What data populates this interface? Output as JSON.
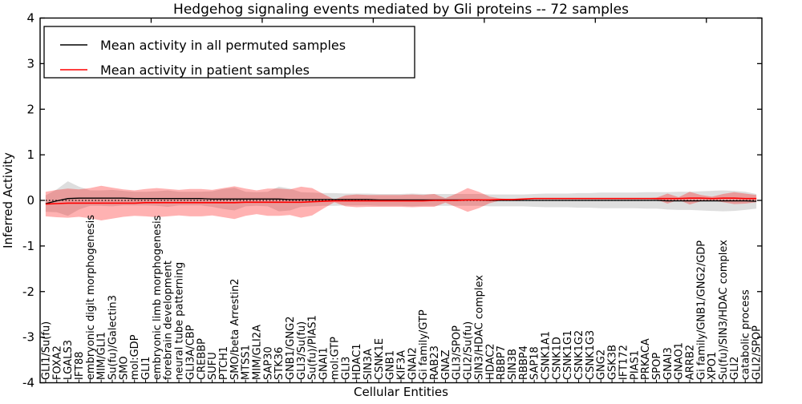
{
  "chart_data": {
    "type": "line",
    "title": "Hedgehog signaling events mediated by Gli proteins -- 72 samples",
    "xlabel": "Cellular Entities",
    "ylabel": "Inferred Activity",
    "ylim": [
      -4,
      4
    ],
    "yticks": [
      -4,
      -3,
      -2,
      -1,
      0,
      1,
      2,
      3,
      4
    ],
    "xticks_major_index": [
      10,
      20,
      30,
      40,
      50,
      60
    ],
    "grid": false,
    "legend": {
      "position": "upper left",
      "frame": true
    },
    "background_color": "#ffffff",
    "axis_color": "#000000",
    "categories": [
      "GLI1/Su(fu)",
      "FOXA2",
      "LGALS3",
      "IFT88",
      "embryonic digit morphogenesis",
      "MIM/GLI1",
      "Su(fu)/Galectin3",
      "SMO",
      "mol:GDP",
      "GLI1",
      "embryonic limb morphogenesis",
      "forebrain development",
      "neural tube patterning",
      "GLI3A/CBP",
      "CREBBP",
      "SUFU",
      "PTCH1",
      "SMO/beta Arrestin2",
      "MTSS1",
      "MIM/GLI2A",
      "SAP30",
      "STK36",
      "GNB1/GNG2",
      "GLI3/Su(fu)",
      "Su(fu)/PIAS1",
      "GNAI1",
      "mol:GTP",
      "GLI3",
      "HDAC1",
      "SIN3A",
      "CSNK1E",
      "GNB1",
      "KIF3A",
      "GNAI2",
      "Gi family/GTP",
      "RAB23",
      "GNAZ",
      "GLI3/SPOP",
      "GLI2/Su(fu)",
      "SIN3/HDAC complex",
      "HDAC2",
      "RBBP7",
      "SIN3B",
      "RBBP4",
      "SAP18",
      "CSNK1A1",
      "CSNK1D",
      "CSNK1G1",
      "CSNK1G2",
      "CSNK1G3",
      "GNG2",
      "GSK3B",
      "IFT172",
      "PIAS1",
      "PRKACA",
      "SPOP",
      "GNAI3",
      "GNAO1",
      "ARRB2",
      "Gi family/GNB1/GNG2/GDP",
      "XPO1",
      "Su(fu)/SIN3/HDAC complex",
      "GLI2",
      "catabolic process",
      "GLI2/SPOP"
    ],
    "series": [
      {
        "name": "Mean activity in all permuted samples",
        "color": "#000000",
        "line_style": "solid",
        "band_color": "#999999",
        "band_opacity": 0.32,
        "values": [
          -0.07,
          -0.01,
          0.04,
          0.05,
          0.05,
          0.05,
          0.05,
          0.05,
          0.04,
          0.04,
          0.04,
          0.04,
          0.04,
          0.04,
          0.04,
          0.03,
          0.03,
          0.03,
          0.03,
          0.03,
          0.03,
          0.03,
          0.02,
          0.02,
          0.02,
          0.02,
          0.02,
          0.02,
          0.02,
          0.02,
          0.01,
          0.01,
          0.01,
          0.01,
          0.01,
          0.01,
          0.01,
          0.01,
          0.01,
          0.01,
          0.0,
          0.0,
          0.0,
          0.0,
          0.0,
          0.0,
          0.0,
          0.0,
          0.0,
          0.0,
          0.0,
          0.0,
          0.0,
          0.0,
          0.0,
          0.0,
          -0.01,
          -0.01,
          -0.01,
          -0.01,
          -0.01,
          -0.01,
          -0.01,
          -0.01,
          -0.02
        ],
        "band_halfwidth": [
          0.18,
          0.25,
          0.38,
          0.25,
          0.17,
          0.17,
          0.18,
          0.16,
          0.15,
          0.15,
          0.16,
          0.18,
          0.15,
          0.15,
          0.15,
          0.17,
          0.22,
          0.25,
          0.16,
          0.15,
          0.16,
          0.27,
          0.24,
          0.16,
          0.15,
          0.14,
          0.14,
          0.13,
          0.13,
          0.13,
          0.13,
          0.13,
          0.13,
          0.14,
          0.13,
          0.13,
          0.13,
          0.13,
          0.13,
          0.13,
          0.13,
          0.13,
          0.13,
          0.13,
          0.14,
          0.15,
          0.15,
          0.15,
          0.16,
          0.16,
          0.17,
          0.17,
          0.17,
          0.17,
          0.18,
          0.18,
          0.19,
          0.2,
          0.2,
          0.21,
          0.22,
          0.23,
          0.22,
          0.2,
          0.16
        ]
      },
      {
        "name": "Mean activity in patient samples",
        "color": "#ff0000",
        "line_style": "solid",
        "band_color": "#ff0000",
        "band_opacity": 0.3,
        "values": [
          -0.08,
          -0.07,
          -0.06,
          -0.06,
          -0.06,
          -0.06,
          -0.06,
          -0.06,
          -0.06,
          -0.05,
          -0.05,
          -0.05,
          -0.05,
          -0.05,
          -0.05,
          -0.05,
          -0.05,
          -0.05,
          -0.04,
          -0.04,
          -0.04,
          -0.04,
          -0.04,
          -0.04,
          -0.03,
          -0.02,
          -0.01,
          -0.01,
          -0.01,
          -0.01,
          -0.01,
          -0.01,
          -0.01,
          -0.01,
          -0.01,
          0.0,
          0.0,
          0.0,
          0.01,
          0.01,
          0.01,
          0.02,
          0.02,
          0.03,
          0.04,
          0.04,
          0.04,
          0.04,
          0.04,
          0.04,
          0.04,
          0.04,
          0.04,
          0.04,
          0.04,
          0.04,
          0.04,
          0.04,
          0.05,
          0.05,
          0.04,
          0.05,
          0.05,
          0.04,
          0.04
        ],
        "band_halfwidth": [
          0.27,
          0.3,
          0.32,
          0.3,
          0.33,
          0.38,
          0.34,
          0.3,
          0.28,
          0.3,
          0.32,
          0.3,
          0.28,
          0.3,
          0.3,
          0.28,
          0.32,
          0.36,
          0.3,
          0.26,
          0.3,
          0.3,
          0.28,
          0.34,
          0.3,
          0.16,
          0.03,
          0.12,
          0.14,
          0.13,
          0.13,
          0.13,
          0.13,
          0.14,
          0.13,
          0.14,
          0.05,
          0.15,
          0.26,
          0.18,
          0.07,
          0.02,
          0.01,
          0.01,
          0.01,
          0.01,
          0.01,
          0.01,
          0.01,
          0.01,
          0.01,
          0.01,
          0.01,
          0.01,
          0.01,
          0.02,
          0.11,
          0.03,
          0.14,
          0.07,
          0.04,
          0.09,
          0.13,
          0.11,
          0.08
        ]
      }
    ],
    "reference_line": {
      "y": 0,
      "color": "#000000",
      "style": "dotted"
    }
  }
}
